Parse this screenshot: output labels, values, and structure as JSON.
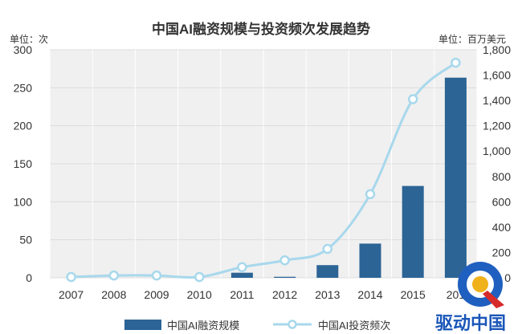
{
  "chart_data": {
    "type": "bar",
    "title": "中国AI融资规模与投资频次发展趋势",
    "left_unit": "单位：次",
    "right_unit": "单位：百万美元",
    "categories": [
      "2007",
      "2008",
      "2009",
      "2010",
      "2011",
      "2012",
      "2013",
      "2014",
      "2015",
      "2016"
    ],
    "visible_category_labels": [
      "2007",
      "2008",
      "2009",
      "2010",
      "2011",
      "2012",
      "2013",
      "2014",
      "2015",
      "201"
    ],
    "left_axis": {
      "ticks": [
        "0",
        "50",
        "100",
        "150",
        "200",
        "250",
        "300"
      ],
      "min": 0,
      "max": 300
    },
    "right_axis": {
      "ticks": [
        "0",
        "200",
        "400",
        "600",
        "800",
        "1,000",
        "1,200",
        "1,400",
        "1,600",
        "1,800"
      ],
      "min": 0,
      "max": 1800
    },
    "series": [
      {
        "name": "中国AI融资规模",
        "type": "bar",
        "axis": "right",
        "color": "#2c6496",
        "values": [
          0,
          0,
          0,
          0,
          40,
          8,
          100,
          270,
          725,
          1580
        ]
      },
      {
        "name": "中国AI投资频次",
        "type": "line",
        "axis": "left",
        "color": "#a8d8ec",
        "values": [
          1,
          3,
          3,
          1,
          14,
          23,
          38,
          110,
          235,
          283
        ]
      }
    ],
    "grid": true,
    "plot_background": "#f0f0f0",
    "legend_position": "bottom"
  },
  "watermark": {
    "text": "驱动中国",
    "logo": "q-logo-icon"
  }
}
